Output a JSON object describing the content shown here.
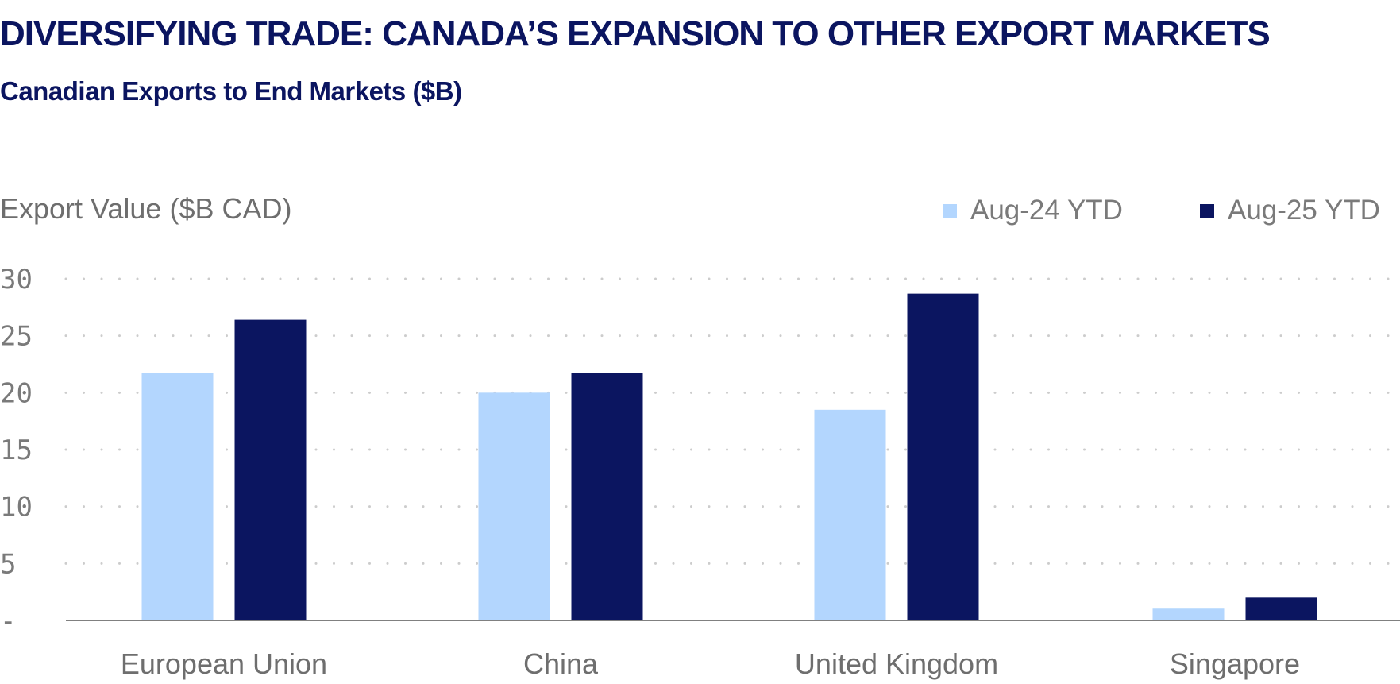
{
  "page": {
    "title": "DIVERSIFYING TRADE: CANADA’S EXPANSION TO OTHER EXPORT MARKETS",
    "subtitle": "Canadian Exports to End Markets ($B)"
  },
  "colors": {
    "title": "#0b1560",
    "series_light": "#b3d6fe",
    "series_dark": "#0b1560",
    "grid_dots": "#cccccc",
    "axis_line": "#808080",
    "label_text": "#7a7a7a"
  },
  "chart_data": {
    "type": "bar",
    "title": "DIVERSIFYING TRADE: CANADA’S EXPANSION TO OTHER EXPORT MARKETS",
    "subtitle": "Canadian Exports to End Markets ($B)",
    "ylabel": "Export Value ($B CAD)",
    "xlabel": "",
    "categories": [
      "European Union",
      "China",
      "United Kingdom",
      "Singapore"
    ],
    "series": [
      {
        "name": "Aug-24 YTD",
        "values": [
          21.7,
          20.0,
          18.5,
          1.1
        ]
      },
      {
        "name": "Aug-25 YTD",
        "values": [
          26.4,
          21.7,
          28.7,
          2.0
        ]
      }
    ],
    "ylim": [
      0,
      30
    ],
    "yticks": [
      0,
      5,
      10,
      15,
      20,
      25,
      30
    ],
    "ytick_labels": [
      "-",
      "5",
      "10",
      "15",
      "20",
      "25",
      "30"
    ],
    "grid": true,
    "grid_style": "dotted",
    "legend_position": "top-right"
  }
}
